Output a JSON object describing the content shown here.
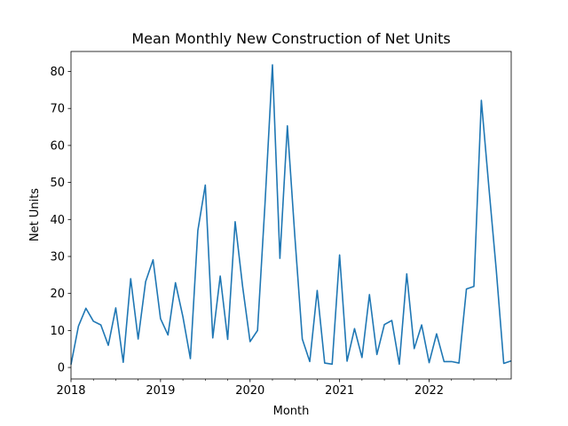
{
  "chart_data": {
    "type": "line",
    "title": "Mean Monthly New Construction of Net Units",
    "xlabel": "Month",
    "ylabel": "Net Units",
    "x_major_ticks": [
      "2018",
      "2019",
      "2020",
      "2021",
      "2022"
    ],
    "y_ticks": [
      "0",
      "10",
      "20",
      "30",
      "40",
      "50",
      "60",
      "70",
      "80"
    ],
    "xlim": [
      "2018-01",
      "2022-12"
    ],
    "ylim": [
      -3.1,
      85.4
    ],
    "grid": false,
    "line_color": "#1f77b4",
    "series": [
      {
        "x": [
          "2018-01",
          "2018-02",
          "2018-03",
          "2018-04",
          "2018-05",
          "2018-06",
          "2018-07",
          "2018-08",
          "2018-09",
          "2018-10",
          "2018-11",
          "2018-12",
          "2019-01",
          "2019-02",
          "2019-03",
          "2019-04",
          "2019-05",
          "2019-06",
          "2019-07",
          "2019-08",
          "2019-09",
          "2019-10",
          "2019-11",
          "2019-12",
          "2020-01",
          "2020-02",
          "2020-03",
          "2020-04",
          "2020-05",
          "2020-06",
          "2020-07",
          "2020-08",
          "2020-09",
          "2020-10",
          "2020-11",
          "2020-12",
          "2021-01",
          "2021-02",
          "2021-03",
          "2021-04",
          "2021-05",
          "2021-06",
          "2021-07",
          "2021-08",
          "2021-09",
          "2021-10",
          "2021-11",
          "2021-12",
          "2022-01",
          "2022-02",
          "2022-03",
          "2022-04",
          "2022-05",
          "2022-06",
          "2022-07",
          "2022-08",
          "2022-09",
          "2022-10",
          "2022-11",
          "2022-12"
        ],
        "values": [
          0.8,
          11.2,
          16.0,
          12.5,
          11.5,
          6.0,
          16.1,
          1.4,
          24.0,
          7.7,
          23.2,
          29.1,
          13.2,
          8.8,
          22.9,
          13.7,
          2.4,
          37.0,
          49.3,
          8.0,
          24.7,
          7.6,
          39.4,
          21.9,
          7.0,
          10.0,
          44.2,
          81.8,
          29.5,
          65.3,
          35.5,
          7.7,
          1.6,
          20.8,
          1.2,
          0.9,
          30.4,
          1.7,
          10.5,
          2.7,
          19.7,
          3.5,
          11.6,
          12.7,
          0.9,
          25.3,
          5.1,
          11.5,
          1.3,
          9.1,
          1.6,
          1.6,
          1.2,
          21.2,
          21.9,
          72.2,
          48.9,
          26.3,
          1.1,
          1.8
        ]
      }
    ]
  }
}
